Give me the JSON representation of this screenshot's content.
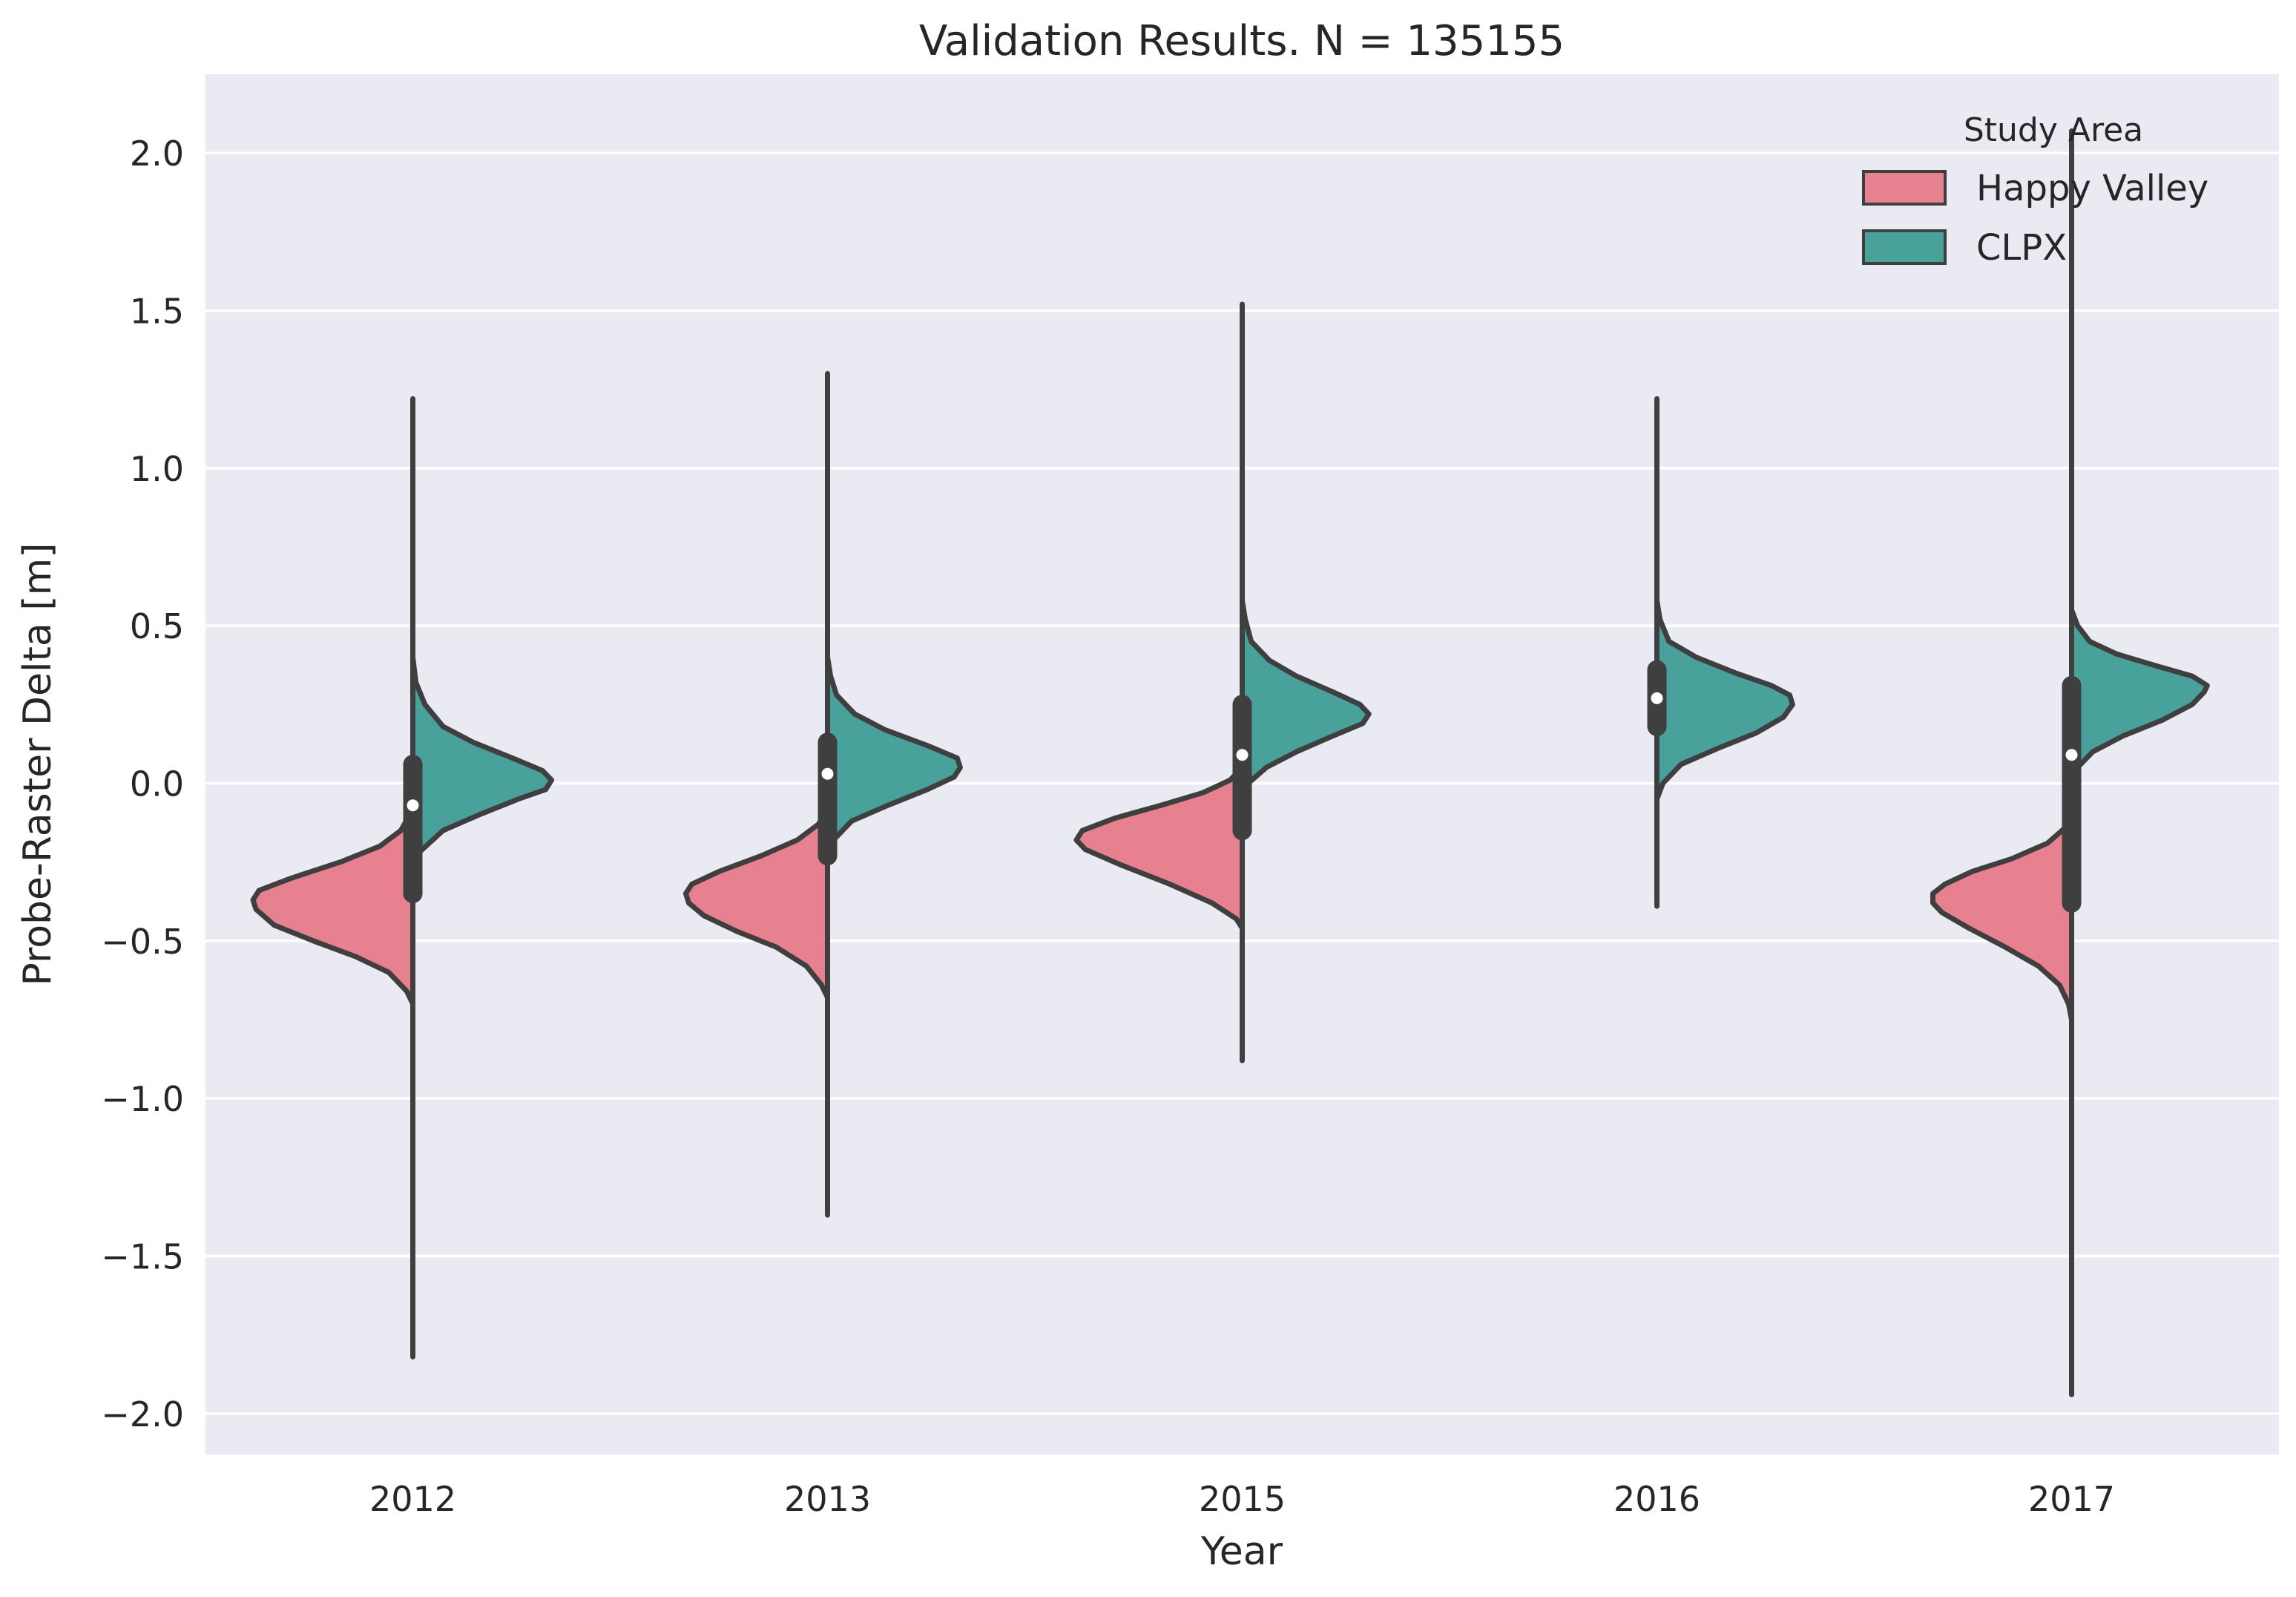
{
  "chart_data": {
    "type": "violin",
    "title": "Validation Results. N = 135155",
    "xlabel": "Year",
    "ylabel": "Probe-Raster Delta [m]",
    "categories": [
      "2012",
      "2013",
      "2015",
      "2016",
      "2017"
    ],
    "ylim": [
      -2.13,
      2.25
    ],
    "yticks": [
      2.0,
      1.5,
      1.0,
      0.5,
      0.0,
      -0.5,
      -1.0,
      -1.5,
      -2.0
    ],
    "ytick_labels": [
      "2.0",
      "1.5",
      "1.0",
      "0.5",
      "0.0",
      "−0.5",
      "−1.0",
      "−1.5",
      "−2.0"
    ],
    "grid": true,
    "split": true,
    "legend": {
      "title": "Study Area",
      "position": "top-right",
      "entries": [
        "Happy Valley",
        "CLPX"
      ]
    },
    "series": [
      {
        "name": "Happy Valley",
        "color": "#e7808f",
        "side": "left",
        "violins": [
          {
            "year": "2012",
            "shape": [
              [
                -0.7,
                0.0
              ],
              [
                -0.66,
                0.02
              ],
              [
                -0.6,
                0.08
              ],
              [
                -0.55,
                0.19
              ],
              [
                -0.5,
                0.33
              ],
              [
                -0.45,
                0.46
              ],
              [
                -0.4,
                0.52
              ],
              [
                -0.37,
                0.53
              ],
              [
                -0.34,
                0.51
              ],
              [
                -0.3,
                0.4
              ],
              [
                -0.25,
                0.24
              ],
              [
                -0.2,
                0.11
              ],
              [
                -0.15,
                0.04
              ],
              [
                -0.1,
                0.01
              ],
              [
                -0.05,
                0.0
              ]
            ]
          },
          {
            "year": "2013",
            "shape": [
              [
                -0.68,
                0.0
              ],
              [
                -0.64,
                0.02
              ],
              [
                -0.58,
                0.07
              ],
              [
                -0.52,
                0.17
              ],
              [
                -0.47,
                0.3
              ],
              [
                -0.42,
                0.41
              ],
              [
                -0.38,
                0.46
              ],
              [
                -0.35,
                0.47
              ],
              [
                -0.32,
                0.45
              ],
              [
                -0.28,
                0.36
              ],
              [
                -0.23,
                0.22
              ],
              [
                -0.18,
                0.1
              ],
              [
                -0.13,
                0.03
              ],
              [
                -0.08,
                0.0
              ]
            ]
          },
          {
            "year": "2015",
            "shape": [
              [
                -0.46,
                0.0
              ],
              [
                -0.43,
                0.02
              ],
              [
                -0.38,
                0.1
              ],
              [
                -0.32,
                0.24
              ],
              [
                -0.26,
                0.4
              ],
              [
                -0.21,
                0.52
              ],
              [
                -0.18,
                0.55
              ],
              [
                -0.15,
                0.53
              ],
              [
                -0.11,
                0.42
              ],
              [
                -0.07,
                0.27
              ],
              [
                -0.03,
                0.13
              ],
              [
                0.01,
                0.04
              ],
              [
                0.04,
                0.01
              ],
              [
                0.07,
                0.0
              ]
            ]
          },
          {
            "year": "2017",
            "shape": [
              [
                -0.75,
                0.0
              ],
              [
                -0.7,
                0.01
              ],
              [
                -0.64,
                0.04
              ],
              [
                -0.58,
                0.11
              ],
              [
                -0.52,
                0.22
              ],
              [
                -0.46,
                0.34
              ],
              [
                -0.41,
                0.43
              ],
              [
                -0.38,
                0.46
              ],
              [
                -0.35,
                0.46
              ],
              [
                -0.32,
                0.42
              ],
              [
                -0.28,
                0.33
              ],
              [
                -0.24,
                0.2
              ],
              [
                -0.19,
                0.08
              ],
              [
                -0.14,
                0.02
              ],
              [
                -0.1,
                0.0
              ]
            ]
          }
        ]
      },
      {
        "name": "CLPX",
        "color": "#48a29b",
        "side": "right",
        "violins": [
          {
            "year": "2012",
            "shape": [
              [
                -0.28,
                0.0
              ],
              [
                -0.22,
                0.02
              ],
              [
                -0.15,
                0.1
              ],
              [
                -0.1,
                0.22
              ],
              [
                -0.05,
                0.35
              ],
              [
                -0.02,
                0.44
              ],
              [
                0.01,
                0.46
              ],
              [
                0.04,
                0.43
              ],
              [
                0.08,
                0.33
              ],
              [
                0.13,
                0.2
              ],
              [
                0.18,
                0.1
              ],
              [
                0.25,
                0.04
              ],
              [
                0.32,
                0.01
              ],
              [
                0.4,
                0.0
              ]
            ]
          },
          {
            "year": "2013",
            "shape": [
              [
                -0.24,
                0.0
              ],
              [
                -0.18,
                0.02
              ],
              [
                -0.12,
                0.08
              ],
              [
                -0.07,
                0.2
              ],
              [
                -0.02,
                0.33
              ],
              [
                0.02,
                0.42
              ],
              [
                0.05,
                0.44
              ],
              [
                0.08,
                0.43
              ],
              [
                0.12,
                0.33
              ],
              [
                0.17,
                0.19
              ],
              [
                0.22,
                0.09
              ],
              [
                0.28,
                0.03
              ],
              [
                0.34,
                0.01
              ],
              [
                0.4,
                0.0
              ]
            ]
          },
          {
            "year": "2015",
            "shape": [
              [
                -0.06,
                0.0
              ],
              [
                0.0,
                0.02
              ],
              [
                0.05,
                0.08
              ],
              [
                0.1,
                0.18
              ],
              [
                0.15,
                0.3
              ],
              [
                0.19,
                0.4
              ],
              [
                0.22,
                0.42
              ],
              [
                0.25,
                0.39
              ],
              [
                0.29,
                0.3
              ],
              [
                0.34,
                0.18
              ],
              [
                0.39,
                0.09
              ],
              [
                0.45,
                0.03
              ],
              [
                0.52,
                0.01
              ],
              [
                0.58,
                0.0
              ]
            ]
          },
          {
            "year": "2016",
            "shape": [
              [
                -0.05,
                0.0
              ],
              [
                0.0,
                0.02
              ],
              [
                0.06,
                0.08
              ],
              [
                0.11,
                0.2
              ],
              [
                0.16,
                0.33
              ],
              [
                0.21,
                0.42
              ],
              [
                0.25,
                0.45
              ],
              [
                0.28,
                0.44
              ],
              [
                0.31,
                0.38
              ],
              [
                0.35,
                0.26
              ],
              [
                0.4,
                0.13
              ],
              [
                0.45,
                0.04
              ],
              [
                0.52,
                0.01
              ],
              [
                0.58,
                0.0
              ]
            ]
          },
          {
            "year": "2017",
            "shape": [
              [
                0.0,
                0.0
              ],
              [
                0.05,
                0.02
              ],
              [
                0.1,
                0.07
              ],
              [
                0.15,
                0.17
              ],
              [
                0.2,
                0.3
              ],
              [
                0.25,
                0.4
              ],
              [
                0.29,
                0.44
              ],
              [
                0.31,
                0.45
              ],
              [
                0.34,
                0.4
              ],
              [
                0.37,
                0.29
              ],
              [
                0.41,
                0.15
              ],
              [
                0.45,
                0.06
              ],
              [
                0.5,
                0.02
              ],
              [
                0.55,
                0.0
              ]
            ]
          }
        ]
      }
    ],
    "inner_box": [
      {
        "year": "2012",
        "median": -0.07,
        "q1": -0.35,
        "q3": 0.06,
        "whisker_low": -1.82,
        "whisker_high": 1.22
      },
      {
        "year": "2013",
        "median": 0.03,
        "q1": -0.23,
        "q3": 0.13,
        "whisker_low": -1.37,
        "whisker_high": 1.3
      },
      {
        "year": "2015",
        "median": 0.09,
        "q1": -0.15,
        "q3": 0.25,
        "whisker_low": -0.88,
        "whisker_high": 1.52
      },
      {
        "year": "2016",
        "median": 0.27,
        "q1": 0.18,
        "q3": 0.36,
        "whisker_low": -0.39,
        "whisker_high": 1.22
      },
      {
        "year": "2017",
        "median": 0.09,
        "q1": -0.38,
        "q3": 0.31,
        "whisker_low": -1.94,
        "whisker_high": 2.07
      }
    ]
  }
}
